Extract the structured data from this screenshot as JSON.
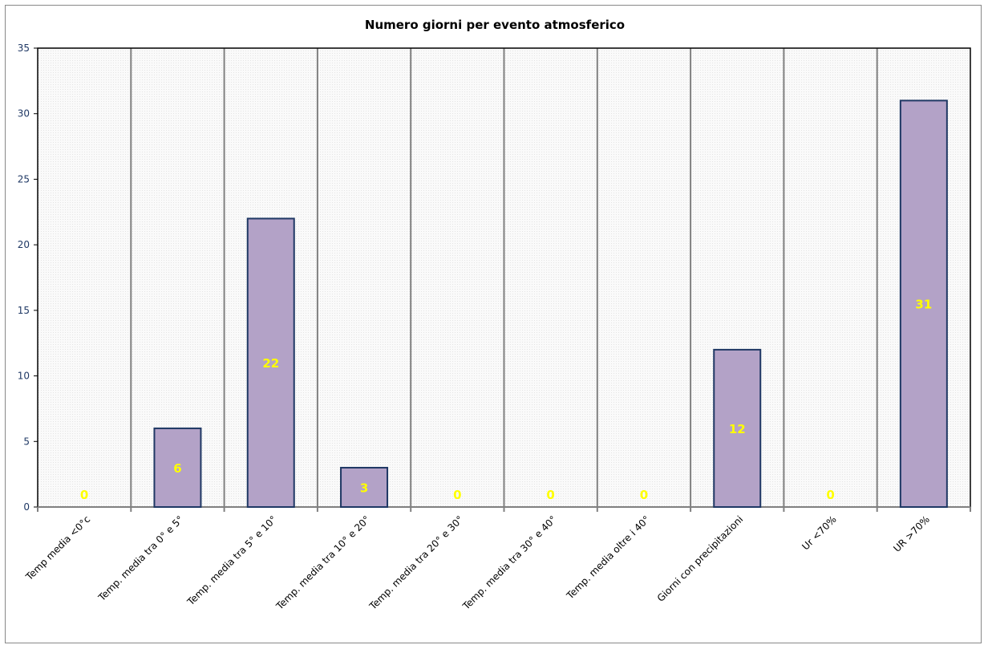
{
  "chart_data": {
    "type": "bar",
    "title": "Numero giorni  per evento atmosferico",
    "categories": [
      "Temp media <0°c",
      "Temp. media tra 0° e 5°",
      "Temp. media tra 5° e 10°",
      "Temp. media tra 10° e 20°",
      "Temp. media tra 20° e 30°",
      "Temp. media tra 30° e 40°",
      "Temp. media oltre i 40°",
      "Giorni con precipitazioni",
      "Ur  <70%",
      "UR >70%"
    ],
    "values": [
      0,
      6,
      22,
      3,
      0,
      0,
      0,
      12,
      0,
      31
    ],
    "data_labels": [
      "0",
      "6",
      "22",
      "3",
      "0",
      "0",
      "0",
      "12",
      "0",
      "31"
    ],
    "xlabel": "",
    "ylabel": "",
    "ylim": [
      0,
      35
    ],
    "yticks": [
      "0",
      "5",
      "10",
      "15",
      "20",
      "25",
      "30",
      "35"
    ],
    "grid": "vertical",
    "colors": {
      "bar": "#b3a2c7",
      "bar_border": "#1f3864",
      "label": "#ffff00",
      "axis_text": "#1f3864"
    }
  }
}
